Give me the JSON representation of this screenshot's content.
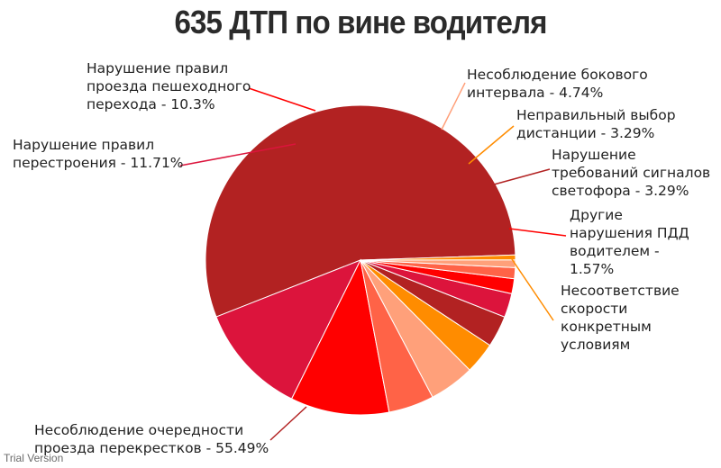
{
  "chart_data": {
    "type": "pie",
    "title": "635 ДТП по вине водителя",
    "slices": [
      {
        "label": "Несоблюдение очередности проезда перекрестков",
        "value": 55.49,
        "value_text": "55.49%",
        "color": "#b22222"
      },
      {
        "label": "Нарушение правил перестроения",
        "value": 11.71,
        "value_text": "11.71%",
        "color": "#dc143c"
      },
      {
        "label": "Нарушение правил проезда пешеходного перехода",
        "value": 10.3,
        "value_text": "10.3%",
        "color": "#ff0000"
      },
      {
        "label": "",
        "value": 4.74,
        "value_text": "",
        "color": "#ff6347"
      },
      {
        "label": "Несоблюдение бокового интервала",
        "value": 4.74,
        "value_text": "4.74%",
        "color": "#ffa07a"
      },
      {
        "label": "Неправильный выбор дистанции",
        "value": 3.29,
        "value_text": "3.29%",
        "color": "#ff8c00"
      },
      {
        "label": "Нарушение требований сигналов светофора",
        "value": 3.29,
        "value_text": "3.29%",
        "color": "#b22222"
      },
      {
        "label": "",
        "value": 2.5,
        "value_text": "",
        "color": "#dc143c"
      },
      {
        "label": "Другие нарушения ПДД водителем",
        "value": 1.57,
        "value_text": "1.57%",
        "color": "#ff0000"
      },
      {
        "label": "",
        "value": 1.15,
        "value_text": "",
        "color": "#ff6347"
      },
      {
        "label": "",
        "value": 0.8,
        "value_text": "",
        "color": "#ffa07a"
      },
      {
        "label": "Несоответствие скорости конкретным условиям",
        "value": 0.5,
        "value_text": "",
        "color": "#ff8c00"
      }
    ]
  },
  "labels": {
    "l0": [
      "Несоблюдение очередности",
      "проезда перекрестков - 55.49%"
    ],
    "l1": [
      "Нарушение правил",
      "перестроения - 11.71%"
    ],
    "l2": [
      "Нарушение правил",
      "проезда пешеходного",
      "перехода - 10.3%"
    ],
    "l4": [
      "Несоблюдение бокового",
      "интервала - 4.74%"
    ],
    "l5": [
      "Неправильный выбор",
      "дистанции - 3.29%"
    ],
    "l6": [
      "Нарушение",
      "требований сигналов",
      "светофора - 3.29%"
    ],
    "l8": [
      "Другие",
      "нарушения ПДД",
      "водителем -",
      "1.57%"
    ],
    "l11": [
      "Несоответствие",
      "скорости",
      "конкретным",
      "условиям"
    ]
  },
  "watermark": "Trial Version"
}
